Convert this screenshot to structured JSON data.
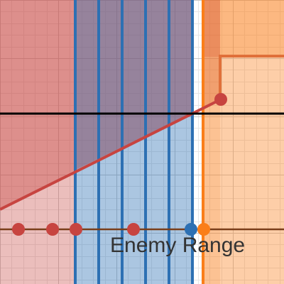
{
  "colors": {
    "red_line": "#c74440",
    "red_fill": "#c74440",
    "blue_line": "#2d70b3",
    "blue_fill": "#2d70b3",
    "orange_line": "#fa7e19",
    "orange_fill": "#fa7e19",
    "grid_minor": "#e6e6e6",
    "grid_major": "#c8c8c8",
    "axis": "#000000",
    "text": "#333333"
  },
  "labels": {
    "enemy_range": "Enemy Range"
  }
}
